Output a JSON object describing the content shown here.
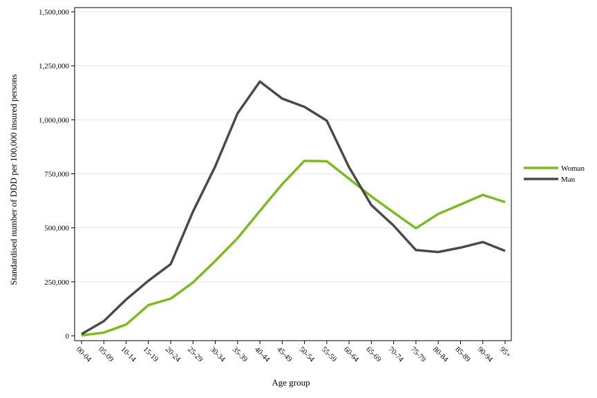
{
  "chart_data": {
    "type": "line",
    "xlabel": "Age group",
    "ylabel": "Standardised number of DDD per 100,000 insured persons",
    "categories": [
      "00-04",
      "05-09",
      "10-14",
      "15-19",
      "20-24",
      "25-29",
      "30-34",
      "35-39",
      "40-44",
      "45-49",
      "50-54",
      "55-59",
      "60-64",
      "65-69",
      "70-74",
      "75-79",
      "80-84",
      "85-89",
      "90-94",
      "95+"
    ],
    "ylim": [
      0,
      1500000
    ],
    "yticks": [
      0,
      250000,
      500000,
      750000,
      1000000,
      1250000,
      1500000
    ],
    "ytick_labels": [
      "0",
      "250,000",
      "500,000",
      "750,000",
      "1,000,000",
      "1,250,000",
      "1,500,000"
    ],
    "grid": true,
    "legend_position": "right",
    "series": [
      {
        "name": "Woman",
        "color": "#7cba21",
        "values": [
          2000,
          15000,
          52000,
          142000,
          172000,
          247000,
          347000,
          452000,
          578000,
          702000,
          810000,
          808000,
          727000,
          645000,
          571000,
          498000,
          564000,
          608000,
          652000,
          619000
        ]
      },
      {
        "name": "Man",
        "color": "#4a4a4a",
        "values": [
          8000,
          68000,
          168000,
          255000,
          332000,
          575000,
          785000,
          1030000,
          1177000,
          1098000,
          1060000,
          996000,
          780000,
          605000,
          510000,
          397000,
          388000,
          408000,
          434000,
          393000
        ]
      }
    ]
  }
}
